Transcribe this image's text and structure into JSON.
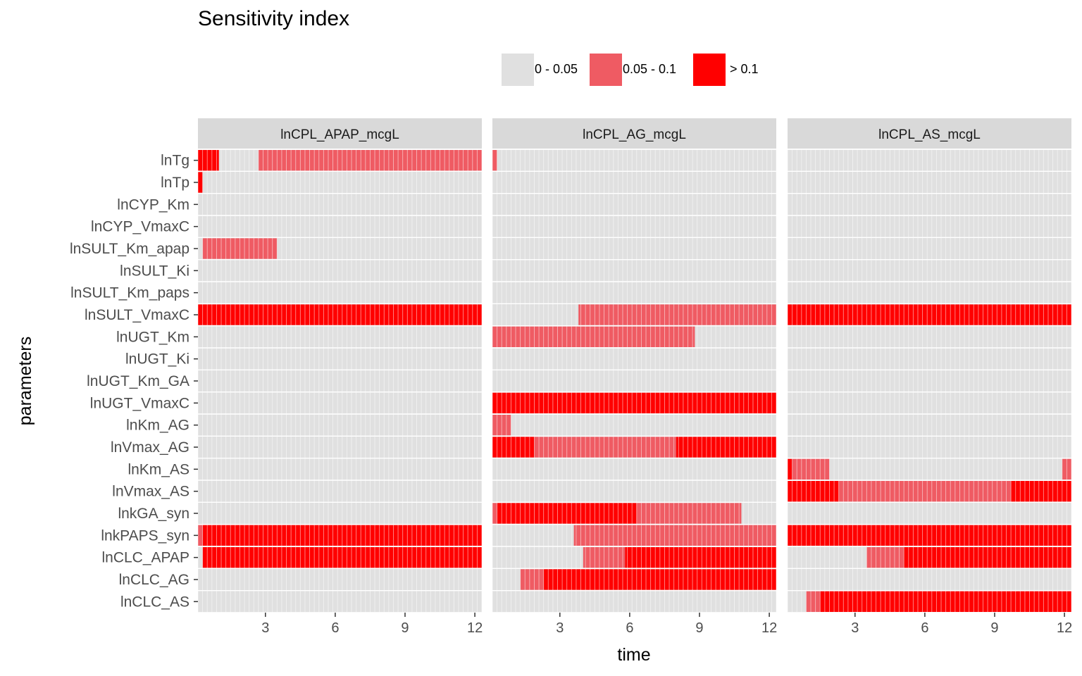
{
  "chart_data": {
    "type": "heatmap",
    "title": "Sensitivity index",
    "xlabel": "time",
    "ylabel": "parameters",
    "xlim": [
      0.1,
      12.3
    ],
    "x_ticks": [
      3,
      6,
      9,
      12
    ],
    "grid": true,
    "legend_position": "top",
    "legend": [
      {
        "label": "0 - 0.05",
        "level": 0,
        "color": "#e0e0e0"
      },
      {
        "label": "0.05 - 0.1",
        "level": 1,
        "color": "#ef5b63"
      },
      {
        "label": "> 0.1",
        "level": 2,
        "color": "#ff0000"
      }
    ],
    "parameters": [
      "lnTg",
      "lnTp",
      "lnCYP_Km",
      "lnCYP_VmaxC",
      "lnSULT_Km_apap",
      "lnSULT_Ki",
      "lnSULT_Km_paps",
      "lnSULT_VmaxC",
      "lnUGT_Km",
      "lnUGT_Ki",
      "lnUGT_Km_GA",
      "lnUGT_VmaxC",
      "lnKm_AG",
      "lnVmax_AG",
      "lnKm_AS",
      "lnVmax_AS",
      "lnkGA_syn",
      "lnkPAPS_syn",
      "lnCLC_APAP",
      "lnCLC_AG",
      "lnCLC_AS"
    ],
    "panels": [
      {
        "name": "lnCPL_APAP_mcgL",
        "segments": {
          "lnTg": [
            [
              0.1,
              1.0,
              2
            ],
            [
              2.7,
              12.3,
              1
            ]
          ],
          "lnTp": [
            [
              0.1,
              0.3,
              2
            ]
          ],
          "lnSULT_Km_apap": [
            [
              0.3,
              3.5,
              1
            ]
          ],
          "lnSULT_VmaxC": [
            [
              0.1,
              12.3,
              2
            ]
          ],
          "lnkPAPS_syn": [
            [
              0.1,
              0.3,
              1
            ],
            [
              0.3,
              12.3,
              2
            ]
          ],
          "lnCLC_APAP": [
            [
              0.3,
              12.3,
              2
            ]
          ]
        }
      },
      {
        "name": "lnCPL_AG_mcgL",
        "segments": {
          "lnTg": [
            [
              0.1,
              0.3,
              1
            ]
          ],
          "lnSULT_VmaxC": [
            [
              3.8,
              12.3,
              1
            ]
          ],
          "lnUGT_Km": [
            [
              0.1,
              8.8,
              1
            ]
          ],
          "lnUGT_VmaxC": [
            [
              0.1,
              12.3,
              2
            ]
          ],
          "lnKm_AG": [
            [
              0.1,
              0.9,
              1
            ]
          ],
          "lnVmax_AG": [
            [
              0.1,
              1.9,
              2
            ],
            [
              1.9,
              8.0,
              1
            ],
            [
              8.0,
              12.3,
              2
            ]
          ],
          "lnkGA_syn": [
            [
              0.1,
              0.3,
              1
            ],
            [
              0.3,
              6.3,
              2
            ],
            [
              6.3,
              10.8,
              1
            ]
          ],
          "lnkPAPS_syn": [
            [
              3.6,
              12.3,
              1
            ]
          ],
          "lnCLC_APAP": [
            [
              4.0,
              5.8,
              1
            ],
            [
              5.8,
              12.3,
              2
            ]
          ],
          "lnCLC_AG": [
            [
              1.3,
              2.3,
              1
            ],
            [
              2.3,
              12.3,
              2
            ]
          ]
        }
      },
      {
        "name": "lnCPL_AS_mcgL",
        "segments": {
          "lnSULT_VmaxC": [
            [
              0.1,
              12.3,
              2
            ]
          ],
          "lnKm_AS": [
            [
              0.1,
              0.3,
              2
            ],
            [
              0.3,
              1.9,
              1
            ],
            [
              11.9,
              12.3,
              1
            ]
          ],
          "lnVmax_AS": [
            [
              0.1,
              2.3,
              2
            ],
            [
              2.3,
              9.7,
              1
            ],
            [
              9.7,
              12.3,
              2
            ]
          ],
          "lnkPAPS_syn": [
            [
              0.1,
              12.3,
              2
            ]
          ],
          "lnCLC_APAP": [
            [
              3.5,
              5.1,
              1
            ],
            [
              5.1,
              12.3,
              2
            ]
          ],
          "lnCLC_AS": [
            [
              0.9,
              1.5,
              1
            ],
            [
              1.5,
              12.3,
              2
            ]
          ]
        }
      }
    ]
  }
}
